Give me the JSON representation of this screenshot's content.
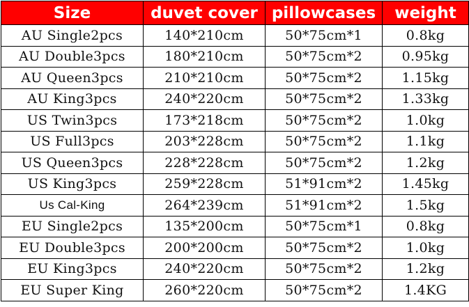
{
  "header_color": "#ff0000",
  "headers": [
    "Size",
    "duvet cover",
    "pillowcases",
    "weight"
  ],
  "rows": [
    [
      "AU Single2pcs",
      "140*210cm",
      "50*75cm*1",
      "0.8kg"
    ],
    [
      "AU Double3pcs",
      "180*210cm",
      "50*75cm*2",
      "0.95kg"
    ],
    [
      "AU Queen3pcs",
      "210*210cm",
      "50*75cm*2",
      "1.15kg"
    ],
    [
      "AU King3pcs",
      "240*220cm",
      "50*75cm*2",
      "1.33kg"
    ],
    [
      "US Twin3pcs",
      "173*218cm",
      "50*75cm*2",
      "1.0kg"
    ],
    [
      "US Full3pcs",
      "203*228cm",
      "50*75cm*2",
      "1.1kg"
    ],
    [
      "US Queen3pcs",
      "228*228cm",
      "50*75cm*2",
      "1.2kg"
    ],
    [
      "US King3pcs",
      "259*228cm",
      "51*91cm*2",
      "1.45kg"
    ],
    [
      "Us Cal-King",
      "264*239cm",
      "51*91cm*2",
      "1.5kg"
    ],
    [
      "EU Single2pcs",
      "135*200cm",
      "50*75cm*1",
      "0.8kg"
    ],
    [
      "EU Double3pcs",
      "200*200cm",
      "50*75cm*2",
      "1.0kg"
    ],
    [
      "EU King3pcs",
      "240*220cm",
      "50*75cm*2",
      "1.2kg"
    ],
    [
      "EU Super King",
      "260*220cm",
      "50*75cm*2",
      "1.4KG"
    ]
  ]
}
